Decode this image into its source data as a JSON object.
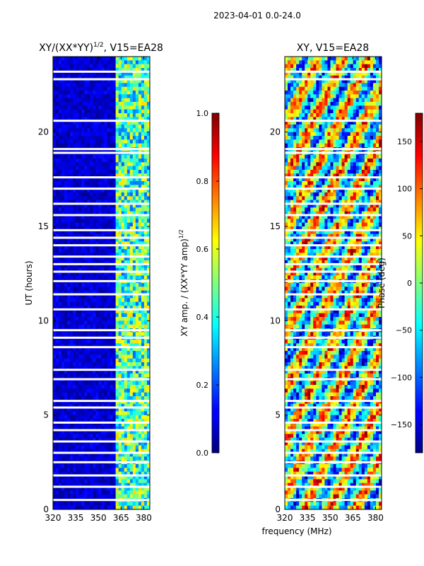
{
  "figure_title": "2023-04-01 0.0-24.0",
  "x_axis_label": "frequency (MHz)",
  "chart_data": [
    {
      "type": "heatmap",
      "title": "XY/(XX*YY)^{1/2}, V15=EA28",
      "title_main": "XY/(XX*YY)",
      "title_sup": "1/2",
      "title_tail": ", V15=EA28",
      "xlabel": "frequency (MHz)",
      "ylabel": "UT (hours)",
      "xlim": [
        320,
        384
      ],
      "ylim": [
        0,
        24
      ],
      "xticks": [
        320,
        335,
        350,
        365,
        380
      ],
      "yticks": [
        0,
        5,
        10,
        15,
        20
      ],
      "colorbar": {
        "label_main": "XY amp. / (XX*YY amp)",
        "label_sup": "1/2",
        "range": [
          0.0,
          1.0
        ],
        "ticks": [
          "0.0",
          "0.2",
          "0.4",
          "0.6",
          "0.8",
          "1.0"
        ]
      },
      "bands": [
        {
          "from": 320,
          "to": 361,
          "value": 0.08
        },
        {
          "from": 361,
          "to": 384,
          "value": 0.45
        }
      ]
    },
    {
      "type": "heatmap",
      "title": "XY, V15=EA28",
      "xlabel": "frequency (MHz)",
      "ylabel": "",
      "xlim": [
        320,
        384
      ],
      "ylim": [
        0,
        24
      ],
      "xticks": [
        320,
        335,
        350,
        365,
        380
      ],
      "yticks": [
        0,
        5,
        10,
        15,
        20
      ],
      "colorbar": {
        "label": "Phase (deg)",
        "range": [
          -180,
          180
        ],
        "ticks": [
          "−150",
          "−100",
          "−50",
          "0",
          "50",
          "100",
          "150"
        ]
      }
    }
  ],
  "gaps_hours": [
    0.5,
    1.2,
    1.8,
    2.5,
    3.0,
    3.6,
    4.2,
    4.6,
    5.4,
    5.75,
    6.9,
    7.4,
    8.6,
    9.1,
    9.5,
    10.6,
    11.4,
    12.1,
    12.6,
    13.0,
    13.4,
    14.0,
    14.4,
    14.8,
    15.6,
    16.2,
    17.0,
    17.6,
    18.9,
    19.1,
    20.6,
    22.8,
    23.2
  ]
}
